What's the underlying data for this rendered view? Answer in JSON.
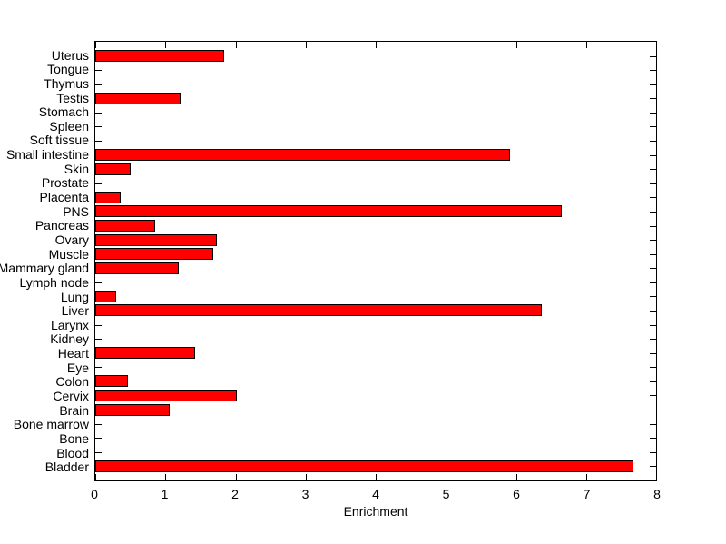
{
  "chart_data": {
    "type": "bar",
    "orientation": "horizontal",
    "title": "",
    "xlabel": "Enrichment",
    "ylabel": "",
    "xlim": [
      0,
      8
    ],
    "xticks": [
      0,
      1,
      2,
      3,
      4,
      5,
      6,
      7,
      8
    ],
    "grid": false,
    "legend": null,
    "bar_color": "#ff0000",
    "bar_edge_color": "#000000",
    "categories": [
      "Uterus",
      "Tongue",
      "Thymus",
      "Testis",
      "Stomach",
      "Spleen",
      "Soft tissue",
      "Small intestine",
      "Skin",
      "Prostate",
      "Placenta",
      "PNS",
      "Pancreas",
      "Ovary",
      "Muscle",
      "Mammary gland",
      "Lymph node",
      "Lung",
      "Liver",
      "Larynx",
      "Kidney",
      "Heart",
      "Eye",
      "Colon",
      "Cervix",
      "Brain",
      "Bone marrow",
      "Bone",
      "Blood",
      "Bladder"
    ],
    "values": [
      1.84,
      0,
      0,
      1.22,
      0,
      0,
      0,
      5.91,
      0.5,
      0,
      0.36,
      6.66,
      0.85,
      1.74,
      1.68,
      1.19,
      0,
      0.3,
      6.37,
      0,
      0,
      1.42,
      0,
      0.46,
      2.02,
      1.06,
      0,
      0,
      0,
      7.67
    ]
  }
}
